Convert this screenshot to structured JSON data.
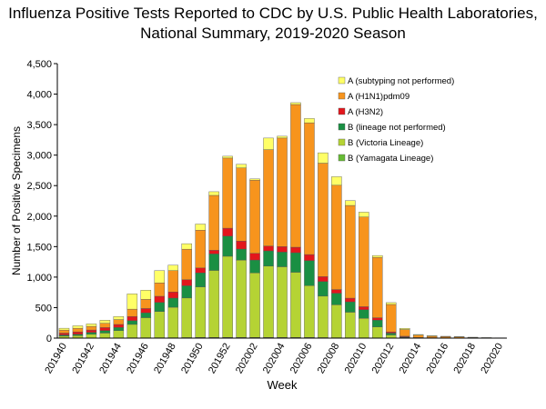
{
  "chart_data": {
    "type": "stacked_bar",
    "title": "Influenza Positive Tests Reported to CDC by U.S. Public Health Laboratories,",
    "subtitle": "National Summary, 2019-2020 Season",
    "x_label": "Week",
    "y_label": "Number of Positive Specimens",
    "categories": [
      "201940",
      null,
      "201942",
      null,
      "201944",
      null,
      "201946",
      null,
      "201948",
      null,
      "201950",
      null,
      "201952",
      null,
      "202002",
      null,
      "202004",
      null,
      "202006",
      null,
      "202008",
      null,
      "202010",
      null,
      "202012",
      null,
      "202014",
      null,
      "202016",
      null,
      "202018",
      null,
      "202020"
    ],
    "series": [
      {
        "name": "B (Yamagata Lineage)",
        "color": "#66bb33",
        "values": [
          2,
          2,
          3,
          3,
          4,
          5,
          5,
          6,
          6,
          8,
          10,
          10,
          12,
          10,
          10,
          10,
          10,
          10,
          10,
          8,
          6,
          5,
          5,
          4,
          2,
          1,
          0,
          0,
          0,
          0,
          0,
          0,
          0
        ]
      },
      {
        "name": "B (Victoria Lineage)",
        "color": "#b5d334",
        "values": [
          30,
          40,
          60,
          80,
          120,
          220,
          330,
          430,
          500,
          650,
          830,
          1100,
          1330,
          1270,
          1060,
          1170,
          1160,
          1070,
          850,
          680,
          540,
          420,
          320,
          180,
          50,
          10,
          2,
          2,
          1,
          1,
          0,
          0,
          0
        ]
      },
      {
        "name": "B (lineage not performed)",
        "color": "#1a8f43",
        "values": [
          20,
          20,
          30,
          40,
          50,
          60,
          80,
          150,
          150,
          200,
          230,
          270,
          330,
          180,
          210,
          250,
          240,
          320,
          410,
          240,
          190,
          170,
          140,
          110,
          30,
          10,
          2,
          1,
          1,
          1,
          1,
          0,
          0
        ]
      },
      {
        "name": "A (H3N2)",
        "color": "#e3161c",
        "values": [
          30,
          40,
          40,
          50,
          50,
          70,
          70,
          100,
          100,
          100,
          80,
          60,
          130,
          130,
          110,
          80,
          90,
          90,
          100,
          80,
          60,
          60,
          50,
          40,
          20,
          10,
          5,
          3,
          2,
          2,
          1,
          1,
          0
        ]
      },
      {
        "name": "A (H1N1)pdm09",
        "color": "#f7941d",
        "values": [
          50,
          60,
          60,
          70,
          80,
          120,
          150,
          220,
          350,
          500,
          620,
          900,
          1150,
          1200,
          1200,
          1580,
          1780,
          2340,
          2160,
          1860,
          1710,
          1520,
          1470,
          990,
          450,
          110,
          40,
          25,
          20,
          15,
          10,
          5,
          3
        ]
      },
      {
        "name": "A (subtyping not performed)",
        "color": "#ffff66",
        "values": [
          30,
          40,
          40,
          50,
          50,
          250,
          150,
          200,
          90,
          90,
          100,
          60,
          30,
          60,
          20,
          190,
          30,
          30,
          70,
          170,
          140,
          80,
          80,
          30,
          30,
          20,
          10,
          9,
          6,
          6,
          3,
          2,
          2
        ]
      }
    ],
    "ylim": [
      0,
      4500
    ],
    "yticks": [
      0,
      500,
      {
        "value": 1000,
        "label": "1,000"
      },
      {
        "value": 1500,
        "label": "1,500"
      },
      {
        "value": 2000,
        "label": "2,000"
      },
      {
        "value": 2500,
        "label": "2,500"
      },
      {
        "value": 3000,
        "label": "3,000"
      },
      {
        "value": 3500,
        "label": "3,500"
      },
      {
        "value": 4000,
        "label": "4,000"
      },
      {
        "value": 4500,
        "label": "4,500"
      }
    ],
    "legend": "top-right"
  }
}
